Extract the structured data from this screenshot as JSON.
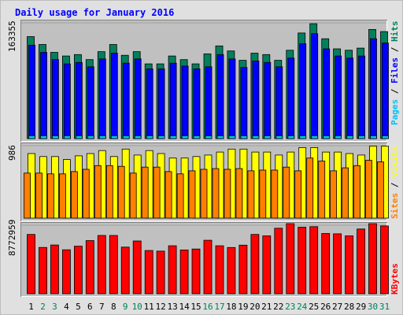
{
  "title": "Daily usage for January 2016",
  "colors": {
    "page_bg": "#e0e0e0",
    "plot_bg": "#c0c0c0",
    "title": "#0000ff",
    "hits": "#00805c",
    "files": "#0000ff",
    "pages": "#00c0ff",
    "visits": "#ffff00",
    "sites": "#ff8000",
    "kbytes": "#ff0000",
    "day_weekday": "#000000",
    "day_weekend": "#00805c"
  },
  "chart_data": [
    {
      "type": "bar",
      "panel": "hits-files-pages",
      "ymax_label": "163355",
      "ylim": [
        0,
        163355
      ],
      "legend": [
        {
          "key": "pages",
          "label": "Pages"
        },
        {
          "key": "sep1",
          "label": " / "
        },
        {
          "key": "files",
          "label": "Files"
        },
        {
          "key": "sep2",
          "label": " / "
        },
        {
          "key": "hits",
          "label": "Hits"
        }
      ],
      "series": [
        {
          "key": "hits",
          "values": [
            142000,
            131000,
            120000,
            115000,
            117000,
            110000,
            121000,
            131000,
            116000,
            121000,
            104000,
            104000,
            115000,
            110000,
            104000,
            118000,
            129000,
            122000,
            109000,
            119000,
            117000,
            109000,
            123000,
            147000,
            160000,
            139000,
            125000,
            123000,
            126000,
            152000,
            149000
          ]
        },
        {
          "key": "files",
          "values": [
            130000,
            120000,
            110000,
            104000,
            106000,
            100000,
            111000,
            119000,
            105000,
            111000,
            97000,
            97000,
            105000,
            101000,
            97000,
            100000,
            117000,
            111000,
            99000,
            108000,
            106000,
            100000,
            112000,
            132000,
            146000,
            125000,
            115000,
            112000,
            115000,
            139000,
            133000
          ]
        },
        {
          "key": "pages",
          "values": [
            4000,
            4000,
            4000,
            4000,
            4000,
            4000,
            4000,
            4000,
            4000,
            4000,
            4000,
            4000,
            4000,
            4000,
            4000,
            4000,
            4000,
            4000,
            4000,
            4000,
            4000,
            4000,
            4000,
            4000,
            4000,
            4000,
            4000,
            4000,
            4000,
            4000,
            4000
          ]
        }
      ]
    },
    {
      "type": "bar",
      "panel": "visits-sites",
      "ymax_label": "986",
      "ylim": [
        0,
        986
      ],
      "legend": [
        {
          "key": "sites",
          "label": "Sites"
        },
        {
          "key": "sep1",
          "label": " / "
        },
        {
          "key": "visits",
          "label": "Visits"
        }
      ],
      "series": [
        {
          "key": "visits",
          "values": [
            860,
            820,
            820,
            780,
            830,
            860,
            900,
            820,
            920,
            840,
            900,
            860,
            800,
            800,
            820,
            840,
            880,
            920,
            920,
            880,
            880,
            840,
            880,
            940,
            940,
            880,
            880,
            860,
            840,
            960,
            960
          ]
        },
        {
          "key": "sites",
          "values": [
            600,
            600,
            590,
            590,
            620,
            650,
            700,
            700,
            690,
            600,
            680,
            680,
            620,
            590,
            630,
            650,
            660,
            650,
            660,
            630,
            640,
            640,
            680,
            630,
            800,
            760,
            630,
            670,
            700,
            770,
            750
          ]
        }
      ]
    },
    {
      "type": "bar",
      "panel": "kbytes",
      "ymax_label": "8772959",
      "ylim": [
        0,
        8772959
      ],
      "legend": [
        {
          "key": "kbytes",
          "label": "KBytes"
        }
      ],
      "series": [
        {
          "key": "kbytes",
          "values": [
            7420000,
            5800000,
            6100000,
            5500000,
            5950000,
            6650000,
            7290000,
            7290000,
            5840000,
            6600000,
            5410000,
            5330000,
            6000000,
            5480000,
            5600000,
            6690000,
            6000000,
            5790000,
            6080000,
            7420000,
            7250000,
            8200000,
            8772959,
            8330000,
            8400000,
            7540000,
            7500000,
            7250000,
            8100000,
            8772959,
            8490000
          ]
        }
      ]
    }
  ],
  "days": [
    "1",
    "2",
    "3",
    "4",
    "5",
    "6",
    "7",
    "8",
    "9",
    "10",
    "11",
    "12",
    "13",
    "14",
    "15",
    "16",
    "17",
    "18",
    "19",
    "20",
    "21",
    "22",
    "23",
    "24",
    "25",
    "26",
    "27",
    "28",
    "29",
    "30",
    "31"
  ],
  "weekend_days": [
    "2",
    "3",
    "9",
    "10",
    "16",
    "17",
    "23",
    "24",
    "30",
    "31"
  ]
}
